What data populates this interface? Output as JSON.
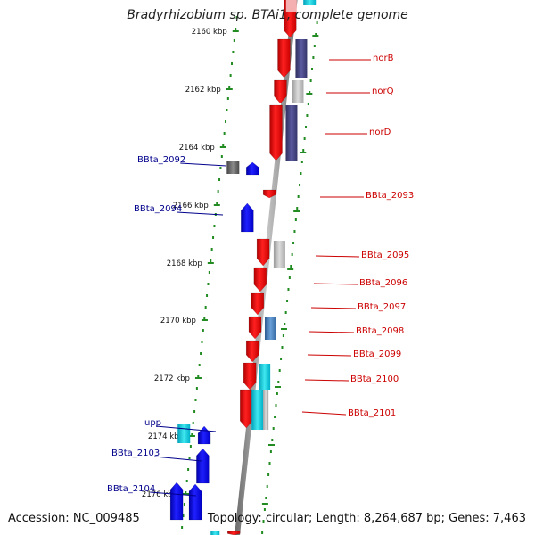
{
  "title": "Bradyrhizobium sp. BTAi1, complete genome",
  "accession": "Accession: NC_009485",
  "topology": "Topology: circular; Length: 8,264,687 bp; Genes: 7,463",
  "colors": {
    "forward": "#ff0000",
    "reverse": "#0000ff",
    "label_left": "#00008b",
    "label_right": "#cc0000",
    "tick": "#228b22",
    "backbone": "#888888"
  },
  "ruler": {
    "unit": "kbp",
    "labels": [
      "2160 kbp",
      "2162 kbp",
      "2164 kbp",
      "2166 kbp",
      "2168 kbp",
      "2170 kbp",
      "2172 kbp",
      "2174 kbp",
      "2176 kbp"
    ]
  },
  "features": [
    {
      "name": "BBta_2092",
      "strand": "reverse",
      "side": "left"
    },
    {
      "name": "BBta_2094",
      "strand": "reverse",
      "side": "left"
    },
    {
      "name": "upp",
      "strand": "reverse",
      "side": "left"
    },
    {
      "name": "BBta_2103",
      "strand": "reverse",
      "side": "left"
    },
    {
      "name": "BBta_2104",
      "strand": "reverse",
      "side": "left"
    },
    {
      "name": "norB",
      "strand": "forward",
      "side": "right"
    },
    {
      "name": "norQ",
      "strand": "forward",
      "side": "right"
    },
    {
      "name": "norD",
      "strand": "forward",
      "side": "right"
    },
    {
      "name": "BBta_2093",
      "strand": "forward",
      "side": "right"
    },
    {
      "name": "BBta_2095",
      "strand": "forward",
      "side": "right"
    },
    {
      "name": "BBta_2096",
      "strand": "forward",
      "side": "right"
    },
    {
      "name": "BBta_2097",
      "strand": "forward",
      "side": "right"
    },
    {
      "name": "BBta_2098",
      "strand": "forward",
      "side": "right"
    },
    {
      "name": "BBta_2099",
      "strand": "forward",
      "side": "right"
    },
    {
      "name": "BBta_2100",
      "strand": "forward",
      "side": "right"
    },
    {
      "name": "BBta_2101",
      "strand": "forward",
      "side": "right"
    }
  ]
}
